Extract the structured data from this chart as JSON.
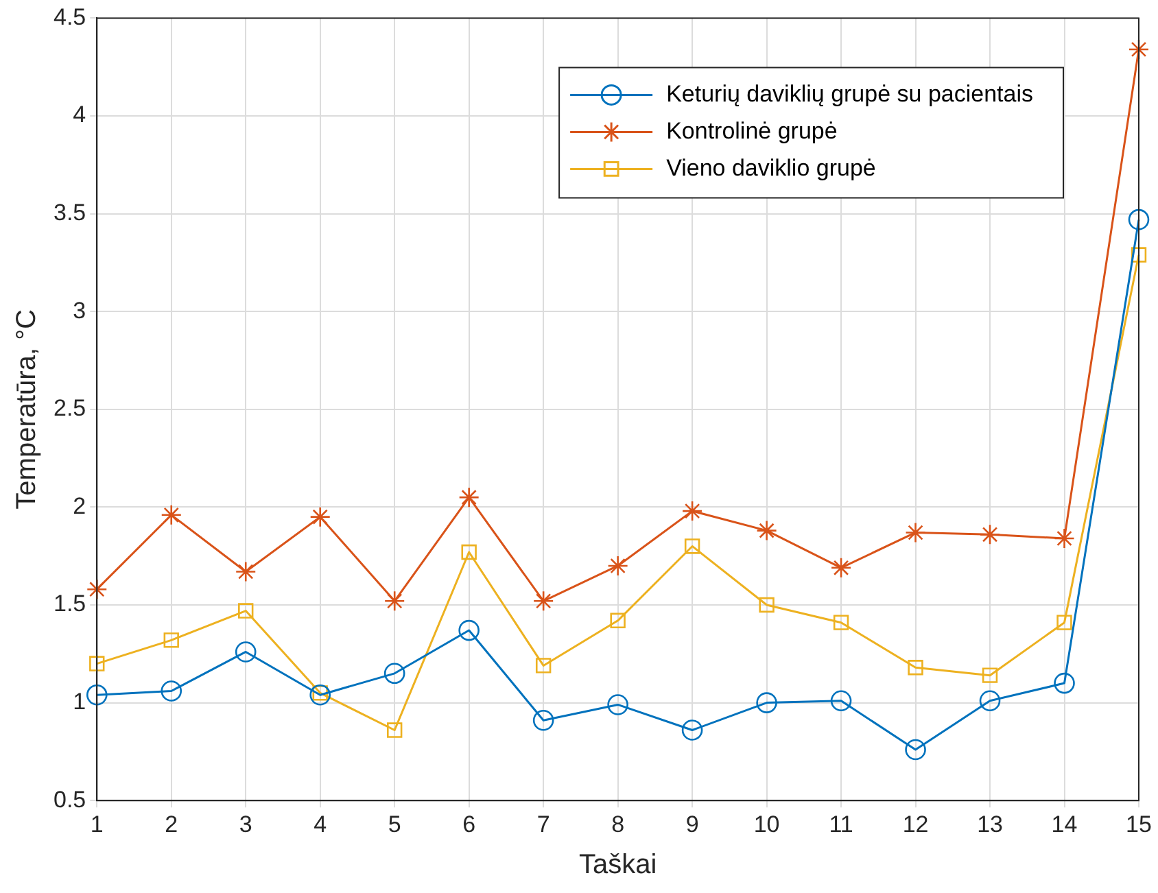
{
  "chart_data": {
    "type": "line",
    "xlabel": "Taškai",
    "ylabel": "Temperatūra, °C",
    "x": [
      1,
      2,
      3,
      4,
      5,
      6,
      7,
      8,
      9,
      10,
      11,
      12,
      13,
      14,
      15
    ],
    "xlim": [
      1,
      15
    ],
    "xticks": [
      1,
      2,
      3,
      4,
      5,
      6,
      7,
      8,
      9,
      10,
      11,
      12,
      13,
      14,
      15
    ],
    "ylim": [
      0.5,
      4.5
    ],
    "yticks": [
      0.5,
      1,
      1.5,
      2,
      2.5,
      3,
      3.5,
      4,
      4.5
    ],
    "grid": true,
    "legend": "top right",
    "line_style": "solid",
    "series": [
      {
        "name": "Keturių daviklių grupė su pacientais",
        "color": "#0072bd",
        "marker": "circle",
        "values": [
          1.04,
          1.06,
          1.26,
          1.04,
          1.15,
          1.37,
          0.91,
          0.99,
          0.86,
          1.0,
          1.01,
          0.76,
          1.01,
          1.1,
          3.47
        ]
      },
      {
        "name": "Kontrolinė grupė",
        "color": "#d95319",
        "marker": "cross",
        "values": [
          1.58,
          1.96,
          1.67,
          1.95,
          1.52,
          2.05,
          1.52,
          1.7,
          1.98,
          1.88,
          1.69,
          1.87,
          1.86,
          1.84,
          4.34
        ]
      },
      {
        "name": "Vieno daviklio grupė",
        "color": "#edb120",
        "marker": "square",
        "values": [
          1.2,
          1.32,
          1.47,
          1.05,
          0.86,
          1.77,
          1.19,
          1.42,
          1.8,
          1.5,
          1.41,
          1.18,
          1.14,
          1.41,
          3.29
        ]
      }
    ]
  }
}
